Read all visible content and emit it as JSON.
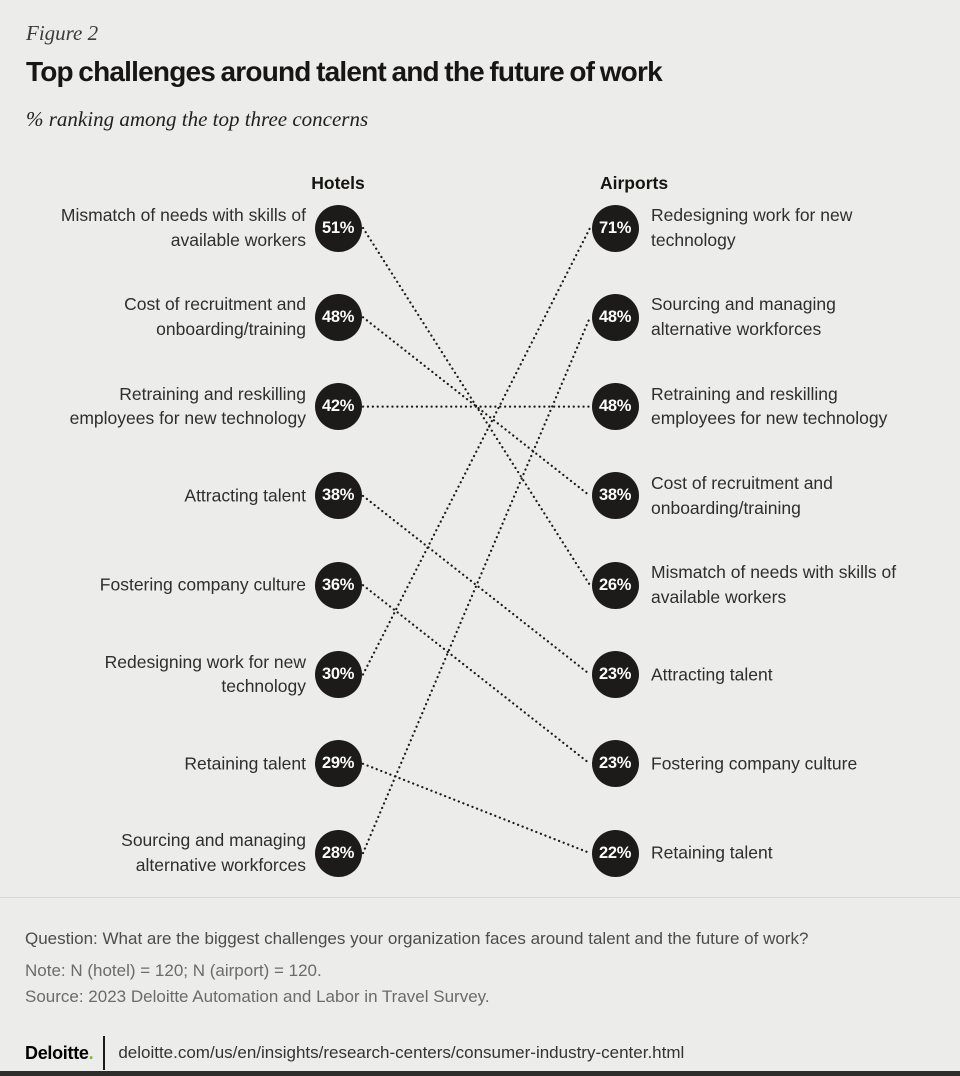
{
  "figure": {
    "label": "Figure 2",
    "title": "Top challenges around talent and the future of work",
    "subtitle": "% ranking among the top three concerns"
  },
  "chart_data": {
    "type": "slopegraph",
    "unit": "%",
    "grid": false,
    "legend_position": "none",
    "columns": [
      "Hotels",
      "Airports"
    ],
    "series": [
      {
        "name": "Hotels",
        "values": [
          {
            "label": "Mismatch of needs with skills of available workers",
            "value": 51
          },
          {
            "label": "Cost of recruitment and onboarding/training",
            "value": 48
          },
          {
            "label": "Retraining and reskilling employees for new technology",
            "value": 42
          },
          {
            "label": "Attracting talent",
            "value": 38
          },
          {
            "label": "Fostering company culture",
            "value": 36
          },
          {
            "label": "Redesigning work for new technology",
            "value": 30
          },
          {
            "label": "Retaining talent",
            "value": 29
          },
          {
            "label": "Sourcing and managing alternative workforces",
            "value": 28
          }
        ]
      },
      {
        "name": "Airports",
        "values": [
          {
            "label": "Redesigning work for new technology",
            "value": 71
          },
          {
            "label": "Sourcing and managing alternative workforces",
            "value": 48
          },
          {
            "label": "Retraining and reskilling employees for new technology",
            "value": 48
          },
          {
            "label": "Cost of recruitment and onboarding/training",
            "value": 38
          },
          {
            "label": "Mismatch of needs with skills of available workers",
            "value": 26
          },
          {
            "label": "Attracting talent",
            "value": 23
          },
          {
            "label": "Fostering company culture",
            "value": 23
          },
          {
            "label": "Retaining talent",
            "value": 22
          }
        ]
      }
    ],
    "links": [
      [
        0,
        4
      ],
      [
        1,
        3
      ],
      [
        2,
        2
      ],
      [
        3,
        5
      ],
      [
        4,
        6
      ],
      [
        5,
        0
      ],
      [
        6,
        7
      ],
      [
        7,
        1
      ]
    ]
  },
  "footer": {
    "question": "Question: What are the biggest challenges your organization faces around talent and the future of work?",
    "note": "Note: N (hotel) = 120; N (airport) = 120.",
    "source": "Source: 2023 Deloitte Automation and Labor in Travel Survey.",
    "brand": "Deloitte",
    "brand_period": ".",
    "url": "deloitte.com/us/en/insights/research-centers/consumer-industry-center.html"
  },
  "colors": {
    "background": "#ECECEA",
    "ink": "#1D1B1A",
    "accent_green": "#86BC25"
  }
}
